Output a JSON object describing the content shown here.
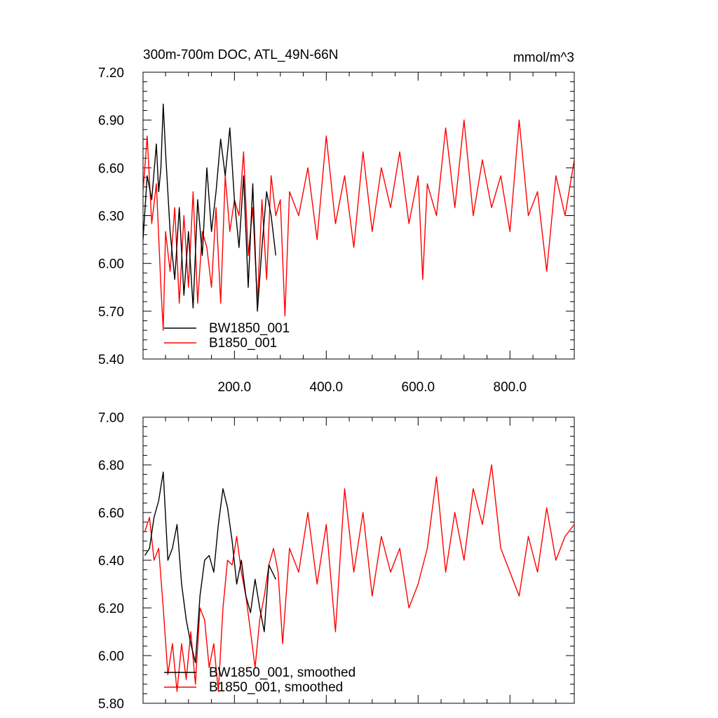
{
  "chart_data": [
    {
      "type": "line",
      "title": "300m-700m DOC, ATL_49N-66N",
      "units_label": "mmol/m^3",
      "xlabel": "",
      "ylabel": "",
      "xlim": [
        1,
        940
      ],
      "ylim": [
        5.4,
        7.2
      ],
      "x_ticks": [
        200,
        400,
        600,
        800
      ],
      "x_tick_labels": [
        "200.0",
        "400.0",
        "600.0",
        "800.0"
      ],
      "y_ticks": [
        5.4,
        5.7,
        6.0,
        6.3,
        6.6,
        6.9,
        7.2
      ],
      "y_tick_labels": [
        "5.40",
        "5.70",
        "6.00",
        "6.30",
        "6.60",
        "6.90",
        "7.20"
      ],
      "legend_position": "bottom-left",
      "series": [
        {
          "name": "BW1850_001",
          "color": "#000000",
          "x": [
            1,
            10,
            20,
            30,
            35,
            40,
            45,
            50,
            60,
            70,
            80,
            90,
            100,
            110,
            120,
            130,
            140,
            150,
            160,
            170,
            180,
            190,
            200,
            210,
            220,
            230,
            240,
            250,
            260,
            270,
            280,
            290
          ],
          "values": [
            6.15,
            6.55,
            6.4,
            6.75,
            6.45,
            6.6,
            7.0,
            6.7,
            6.2,
            5.9,
            6.35,
            5.8,
            6.2,
            5.72,
            6.4,
            6.05,
            6.6,
            6.2,
            6.45,
            6.78,
            6.55,
            6.85,
            6.4,
            6.1,
            6.55,
            5.85,
            6.5,
            5.7,
            6.1,
            6.45,
            6.3,
            6.05
          ]
        },
        {
          "name": "B1850_001",
          "color": "#ff0000",
          "x": [
            1,
            10,
            20,
            30,
            40,
            45,
            50,
            60,
            70,
            80,
            90,
            100,
            110,
            120,
            130,
            140,
            150,
            160,
            170,
            180,
            190,
            200,
            210,
            220,
            230,
            240,
            250,
            260,
            270,
            280,
            290,
            300,
            310,
            320,
            340,
            360,
            380,
            400,
            420,
            440,
            460,
            480,
            500,
            520,
            540,
            560,
            580,
            600,
            610,
            620,
            640,
            660,
            680,
            700,
            720,
            740,
            760,
            780,
            800,
            820,
            840,
            860,
            880,
            900,
            920,
            940
          ],
          "values": [
            6.45,
            6.8,
            6.25,
            6.5,
            5.85,
            5.58,
            6.2,
            5.95,
            6.35,
            5.75,
            6.3,
            5.85,
            6.45,
            5.75,
            6.2,
            6.1,
            5.85,
            6.35,
            5.75,
            6.55,
            6.2,
            6.4,
            6.3,
            6.7,
            6.05,
            6.35,
            5.75,
            6.4,
            5.9,
            6.55,
            6.3,
            6.4,
            5.67,
            6.45,
            6.3,
            6.6,
            6.15,
            6.8,
            6.25,
            6.55,
            6.1,
            6.7,
            6.2,
            6.6,
            6.35,
            6.7,
            6.25,
            6.55,
            5.9,
            6.5,
            6.3,
            6.85,
            6.35,
            6.9,
            6.3,
            6.65,
            6.35,
            6.55,
            6.2,
            6.9,
            6.3,
            6.45,
            5.95,
            6.55,
            6.3,
            6.65
          ]
        }
      ]
    },
    {
      "type": "line",
      "title": "",
      "xlabel": "",
      "ylabel": "",
      "xlim": [
        1,
        940
      ],
      "ylim": [
        5.8,
        7.0
      ],
      "x_ticks": [
        200,
        400,
        600,
        800
      ],
      "y_ticks": [
        5.8,
        6.0,
        6.2,
        6.4,
        6.6,
        6.8,
        7.0
      ],
      "y_tick_labels": [
        "5.80",
        "6.00",
        "6.20",
        "6.40",
        "6.60",
        "6.80",
        "7.00"
      ],
      "legend_position": "bottom-left",
      "series": [
        {
          "name": "BW1850_001, smoothed",
          "color": "#000000",
          "x": [
            5,
            15,
            25,
            35,
            45,
            55,
            65,
            75,
            85,
            95,
            105,
            115,
            125,
            135,
            145,
            155,
            165,
            175,
            185,
            195,
            205,
            215,
            225,
            235,
            245,
            255,
            265,
            275,
            290
          ],
          "values": [
            6.42,
            6.45,
            6.58,
            6.65,
            6.77,
            6.4,
            6.45,
            6.55,
            6.3,
            6.15,
            6.05,
            5.97,
            6.25,
            6.4,
            6.42,
            6.35,
            6.55,
            6.7,
            6.62,
            6.48,
            6.3,
            6.4,
            6.25,
            6.18,
            6.32,
            6.2,
            6.1,
            6.38,
            6.32
          ]
        },
        {
          "name": "B1850_001, smoothed",
          "color": "#ff0000",
          "x": [
            5,
            15,
            25,
            35,
            45,
            55,
            65,
            75,
            85,
            95,
            105,
            115,
            125,
            135,
            145,
            155,
            165,
            175,
            185,
            195,
            205,
            215,
            225,
            235,
            245,
            255,
            265,
            275,
            285,
            295,
            305,
            320,
            340,
            360,
            380,
            400,
            420,
            440,
            460,
            480,
            500,
            520,
            540,
            560,
            580,
            600,
            620,
            640,
            660,
            680,
            700,
            720,
            740,
            760,
            780,
            800,
            820,
            840,
            860,
            880,
            900,
            920,
            940
          ],
          "values": [
            6.52,
            6.58,
            6.4,
            6.45,
            6.2,
            5.92,
            6.05,
            5.85,
            6.05,
            5.9,
            6.1,
            5.88,
            6.2,
            6.15,
            5.95,
            6.05,
            5.85,
            6.2,
            6.4,
            6.38,
            6.5,
            6.35,
            6.25,
            6.1,
            5.95,
            6.15,
            6.25,
            6.38,
            6.45,
            6.35,
            6.05,
            6.45,
            6.35,
            6.6,
            6.3,
            6.55,
            6.1,
            6.7,
            6.35,
            6.6,
            6.25,
            6.5,
            6.35,
            6.45,
            6.2,
            6.3,
            6.45,
            6.75,
            6.35,
            6.6,
            6.4,
            6.7,
            6.55,
            6.8,
            6.45,
            6.35,
            6.25,
            6.5,
            6.35,
            6.62,
            6.4,
            6.5,
            6.55
          ]
        }
      ]
    }
  ]
}
